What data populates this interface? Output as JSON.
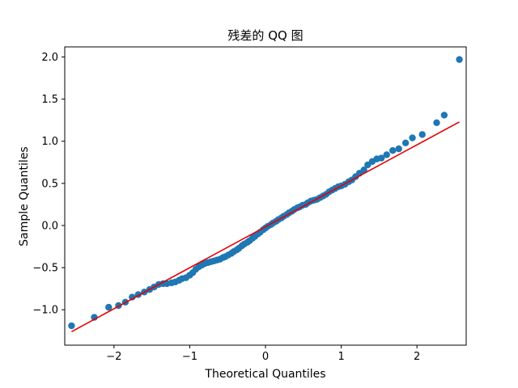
{
  "chart_data": {
    "type": "scatter",
    "title": "残差的 QQ 图",
    "xlabel": "Theoretical Quantiles",
    "ylabel": "Sample Quantiles",
    "xlim": [
      -2.65,
      2.65
    ],
    "ylim": [
      -1.42,
      2.12
    ],
    "grid": false,
    "legend": "none",
    "x_ticks": [
      {
        "value": -2,
        "label": "−2"
      },
      {
        "value": -1,
        "label": "−1"
      },
      {
        "value": 0,
        "label": "0"
      },
      {
        "value": 1,
        "label": "1"
      },
      {
        "value": 2,
        "label": "2"
      }
    ],
    "y_ticks": [
      {
        "value": -1.0,
        "label": "−1.0"
      },
      {
        "value": -0.5,
        "label": "−0.5"
      },
      {
        "value": 0.0,
        "label": "0.0"
      },
      {
        "value": 0.5,
        "label": "0.5"
      },
      {
        "value": 1.0,
        "label": "1.0"
      },
      {
        "value": 1.5,
        "label": "1.5"
      },
      {
        "value": 2.0,
        "label": "2.0"
      }
    ],
    "series": [
      {
        "kind": "points",
        "color": "#1f77b4",
        "points": [
          [
            -2.56,
            -1.19
          ],
          [
            -2.26,
            -1.09
          ],
          [
            -2.07,
            -0.97
          ],
          [
            -1.94,
            -0.95
          ],
          [
            -1.85,
            -0.91
          ],
          [
            -1.76,
            -0.85
          ],
          [
            -1.68,
            -0.82
          ],
          [
            -1.6,
            -0.79
          ],
          [
            -1.53,
            -0.76
          ],
          [
            -1.47,
            -0.73
          ],
          [
            -1.41,
            -0.7
          ],
          [
            -1.35,
            -0.69
          ],
          [
            -1.3,
            -0.69
          ],
          [
            -1.24,
            -0.68
          ],
          [
            -1.19,
            -0.67
          ],
          [
            -1.14,
            -0.65
          ],
          [
            -1.1,
            -0.63
          ],
          [
            -1.05,
            -0.62
          ],
          [
            -1.0,
            -0.59
          ],
          [
            -0.96,
            -0.56
          ],
          [
            -0.92,
            -0.52
          ],
          [
            -0.88,
            -0.49
          ],
          [
            -0.84,
            -0.47
          ],
          [
            -0.8,
            -0.45
          ],
          [
            -0.76,
            -0.44
          ],
          [
            -0.72,
            -0.43
          ],
          [
            -0.68,
            -0.42
          ],
          [
            -0.64,
            -0.41
          ],
          [
            -0.6,
            -0.4
          ],
          [
            -0.56,
            -0.38
          ],
          [
            -0.53,
            -0.37
          ],
          [
            -0.49,
            -0.35
          ],
          [
            -0.45,
            -0.33
          ],
          [
            -0.42,
            -0.31
          ],
          [
            -0.38,
            -0.29
          ],
          [
            -0.35,
            -0.27
          ],
          [
            -0.31,
            -0.24
          ],
          [
            -0.28,
            -0.22
          ],
          [
            -0.24,
            -0.2
          ],
          [
            -0.21,
            -0.18
          ],
          [
            -0.17,
            -0.15
          ],
          [
            -0.14,
            -0.13
          ],
          [
            -0.1,
            -0.1
          ],
          [
            -0.07,
            -0.08
          ],
          [
            -0.03,
            -0.05
          ],
          [
            0.0,
            -0.03
          ],
          [
            0.03,
            -0.01
          ],
          [
            0.07,
            0.01
          ],
          [
            0.1,
            0.03
          ],
          [
            0.14,
            0.05
          ],
          [
            0.17,
            0.07
          ],
          [
            0.21,
            0.09
          ],
          [
            0.24,
            0.11
          ],
          [
            0.28,
            0.13
          ],
          [
            0.31,
            0.15
          ],
          [
            0.35,
            0.17
          ],
          [
            0.38,
            0.19
          ],
          [
            0.42,
            0.21
          ],
          [
            0.45,
            0.22
          ],
          [
            0.49,
            0.24
          ],
          [
            0.53,
            0.25
          ],
          [
            0.56,
            0.27
          ],
          [
            0.6,
            0.29
          ],
          [
            0.64,
            0.3
          ],
          [
            0.68,
            0.31
          ],
          [
            0.72,
            0.33
          ],
          [
            0.76,
            0.35
          ],
          [
            0.8,
            0.37
          ],
          [
            0.84,
            0.4
          ],
          [
            0.88,
            0.42
          ],
          [
            0.92,
            0.44
          ],
          [
            0.96,
            0.46
          ],
          [
            1.0,
            0.47
          ],
          [
            1.05,
            0.49
          ],
          [
            1.1,
            0.52
          ],
          [
            1.14,
            0.54
          ],
          [
            1.19,
            0.58
          ],
          [
            1.24,
            0.62
          ],
          [
            1.3,
            0.66
          ],
          [
            1.35,
            0.72
          ],
          [
            1.41,
            0.76
          ],
          [
            1.47,
            0.79
          ],
          [
            1.53,
            0.8
          ],
          [
            1.6,
            0.84
          ],
          [
            1.68,
            0.89
          ],
          [
            1.76,
            0.91
          ],
          [
            1.85,
            0.98
          ],
          [
            1.94,
            1.04
          ],
          [
            2.07,
            1.08
          ],
          [
            2.26,
            1.22
          ],
          [
            2.36,
            1.31
          ],
          [
            2.56,
            1.97
          ]
        ]
      },
      {
        "kind": "line",
        "color": "#e50000",
        "points": [
          [
            -2.56,
            -1.26
          ],
          [
            2.56,
            1.23
          ]
        ]
      }
    ]
  }
}
